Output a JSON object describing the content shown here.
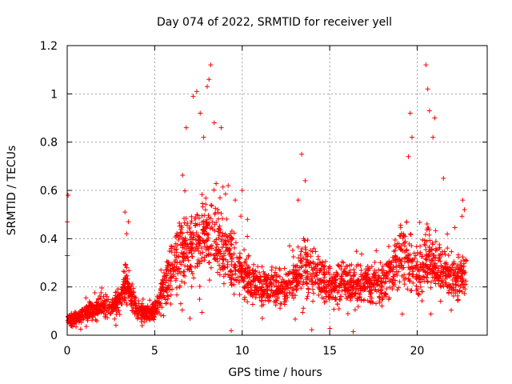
{
  "chart_data": {
    "type": "scatter",
    "title": "Day 074 of 2022, SRMTID for receiver yell",
    "xlabel": "GPS time / hours",
    "ylabel": "SRMTID / TECUs",
    "xlim": [
      0,
      24
    ],
    "ylim": [
      0,
      1.2
    ],
    "xticks": [
      0,
      5,
      10,
      15,
      20
    ],
    "xtick_labels": [
      "0",
      "5",
      "10",
      "15",
      "20"
    ],
    "yticks": [
      0,
      0.2,
      0.4,
      0.6,
      0.8,
      1,
      1.2
    ],
    "ytick_labels": [
      "0",
      "0.2",
      "0.4",
      "0.6",
      "0.8",
      "1",
      "1.2"
    ],
    "grid": true,
    "marker": "+",
    "color": "#ff0000",
    "series": [
      {
        "name": "SRMTID",
        "profile": [
          [
            0.0,
            0.06
          ],
          [
            0.5,
            0.07
          ],
          [
            1.0,
            0.09
          ],
          [
            1.5,
            0.11
          ],
          [
            2.0,
            0.12
          ],
          [
            2.5,
            0.12
          ],
          [
            3.0,
            0.14
          ],
          [
            3.3,
            0.22
          ],
          [
            3.6,
            0.17
          ],
          [
            4.0,
            0.1
          ],
          [
            4.5,
            0.09
          ],
          [
            5.0,
            0.1
          ],
          [
            5.5,
            0.2
          ],
          [
            6.0,
            0.28
          ],
          [
            6.5,
            0.34
          ],
          [
            7.0,
            0.38
          ],
          [
            7.5,
            0.4
          ],
          [
            8.0,
            0.42
          ],
          [
            8.5,
            0.4
          ],
          [
            9.0,
            0.36
          ],
          [
            9.5,
            0.3
          ],
          [
            10.0,
            0.26
          ],
          [
            10.5,
            0.22
          ],
          [
            11.0,
            0.2
          ],
          [
            11.5,
            0.2
          ],
          [
            12.0,
            0.2
          ],
          [
            12.5,
            0.19
          ],
          [
            13.0,
            0.22
          ],
          [
            13.5,
            0.3
          ],
          [
            14.0,
            0.26
          ],
          [
            14.5,
            0.24
          ],
          [
            15.0,
            0.2
          ],
          [
            15.5,
            0.22
          ],
          [
            16.0,
            0.22
          ],
          [
            16.5,
            0.2
          ],
          [
            17.0,
            0.22
          ],
          [
            17.5,
            0.22
          ],
          [
            18.0,
            0.22
          ],
          [
            18.5,
            0.26
          ],
          [
            19.0,
            0.34
          ],
          [
            19.5,
            0.3
          ],
          [
            20.0,
            0.26
          ],
          [
            20.5,
            0.32
          ],
          [
            21.0,
            0.3
          ],
          [
            21.5,
            0.26
          ],
          [
            22.0,
            0.24
          ],
          [
            22.5,
            0.24
          ],
          [
            22.8,
            0.26
          ]
        ],
        "highlights": [
          [
            0.05,
            0.58
          ],
          [
            0.0,
            0.47
          ],
          [
            0.0,
            0.33
          ],
          [
            3.3,
            0.51
          ],
          [
            3.5,
            0.47
          ],
          [
            3.4,
            0.42
          ],
          [
            6.8,
            0.86
          ],
          [
            7.2,
            0.99
          ],
          [
            7.4,
            1.01
          ],
          [
            7.6,
            0.92
          ],
          [
            7.8,
            0.82
          ],
          [
            8.0,
            1.03
          ],
          [
            8.1,
            1.06
          ],
          [
            8.2,
            1.12
          ],
          [
            8.4,
            0.88
          ],
          [
            8.8,
            0.86
          ],
          [
            9.2,
            0.62
          ],
          [
            9.6,
            0.56
          ],
          [
            10.0,
            0.6
          ],
          [
            10.3,
            0.48
          ],
          [
            13.4,
            0.75
          ],
          [
            13.6,
            0.64
          ],
          [
            13.2,
            0.56
          ],
          [
            19.6,
            0.92
          ],
          [
            19.7,
            0.82
          ],
          [
            19.5,
            0.74
          ],
          [
            20.5,
            1.12
          ],
          [
            20.6,
            1.02
          ],
          [
            20.7,
            0.93
          ],
          [
            21.0,
            0.9
          ],
          [
            20.9,
            0.82
          ],
          [
            21.5,
            0.65
          ],
          [
            22.6,
            0.56
          ],
          [
            22.7,
            0.52
          ]
        ]
      }
    ]
  }
}
